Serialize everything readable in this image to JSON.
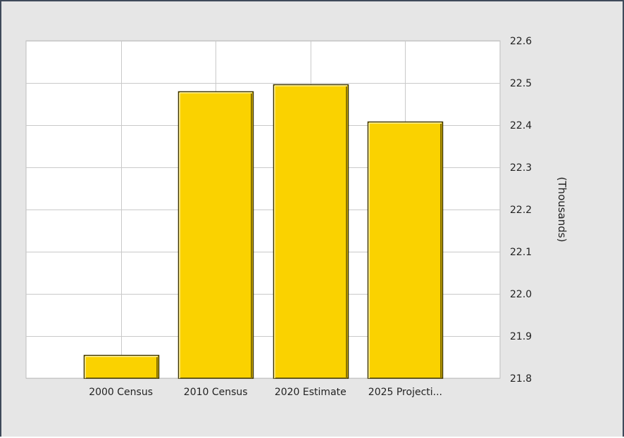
{
  "chart_data": {
    "type": "bar",
    "categories": [
      "2000 Census",
      "2010 Census",
      "2020 Estimate",
      "2025 Projecti..."
    ],
    "values": [
      21.855,
      22.48,
      22.497,
      22.408
    ],
    "ylabel": "(Thousands)",
    "ylim": [
      21.8,
      22.6
    ],
    "yticks": [
      "22.6",
      "22.5",
      "22.4",
      "22.3",
      "22.2",
      "22.1",
      "22.0",
      "21.9",
      "21.8"
    ],
    "ytick_values": [
      22.6,
      22.5,
      22.4,
      22.3,
      22.2,
      22.1,
      22.0,
      21.9,
      21.8
    ],
    "y_axis_position": "right",
    "grid": true,
    "legend": "none",
    "bar_color": "#fad200",
    "bar_edge_color": "#3a3200",
    "background_color": "#e6e6e6",
    "plot_background_color": "#ffffff",
    "grid_color": "#c9c9c9"
  }
}
